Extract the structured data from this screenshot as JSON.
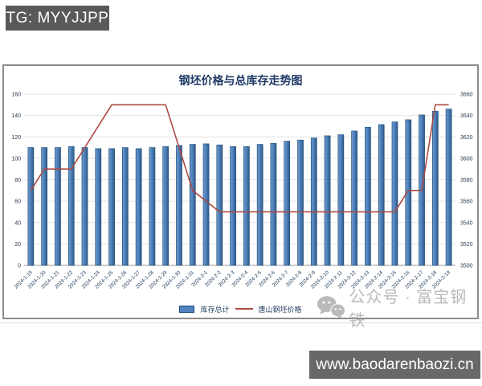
{
  "badges": {
    "telegram": "TG: MYYJJPP",
    "website": "www.baodarenbaozi.cn"
  },
  "watermark": {
    "icon": "wechat-icon",
    "text": "公众号 · 富宝钢铁"
  },
  "chart_data": {
    "type": "bar",
    "title": "钢坯价格与总库存走势图",
    "categories": [
      "2024-1-19",
      "2024-1-20",
      "2024-1-21",
      "2024-1-22",
      "2024-1-23",
      "2024-1-24",
      "2024-1-25",
      "2024-1-26",
      "2024-1-27",
      "2024-1-28",
      "2024-1-29",
      "2024-1-30",
      "2024-1-31",
      "2024-2-1",
      "2024-2-2",
      "2024-2-3",
      "2024-2-4",
      "2024-2-5",
      "2024-2-6",
      "2024-2-7",
      "2024-2-8",
      "2024-2-9",
      "2024-2-10",
      "2024-2-11",
      "2024-2-12",
      "2024-2-13",
      "2024-2-14",
      "2024-2-15",
      "2024-2-16",
      "2024-2-17",
      "2024-2-18",
      "2024-2-19"
    ],
    "series": [
      {
        "name": "库存总计",
        "type": "bar",
        "axis": "left",
        "color": "#4f81bd",
        "values": [
          110,
          110,
          110,
          111,
          110,
          109,
          109,
          110,
          109,
          110,
          111,
          112,
          113,
          113.5,
          112.5,
          111,
          111,
          113,
          114,
          116,
          117,
          119,
          121,
          122,
          125.5,
          129,
          131.5,
          134,
          136,
          140.5,
          144,
          146
        ]
      },
      {
        "name": "唐山钢坯价格",
        "type": "line",
        "axis": "right",
        "color": "#ac4a42",
        "values": [
          3570,
          3590,
          3590,
          3590,
          3610,
          3630,
          3650,
          3650,
          3650,
          3650,
          3650,
          3610,
          3570,
          3560,
          3550,
          3550,
          3550,
          3550,
          3550,
          3550,
          3550,
          3550,
          3550,
          3550,
          3550,
          3550,
          3550,
          3550,
          3570,
          3570,
          3650,
          3650
        ]
      }
    ],
    "left_axis": {
      "min": 0,
      "max": 160,
      "step": 20
    },
    "right_axis": {
      "min": 3500,
      "max": 3660,
      "step": 20
    },
    "grid": true,
    "legend_position": "bottom"
  }
}
